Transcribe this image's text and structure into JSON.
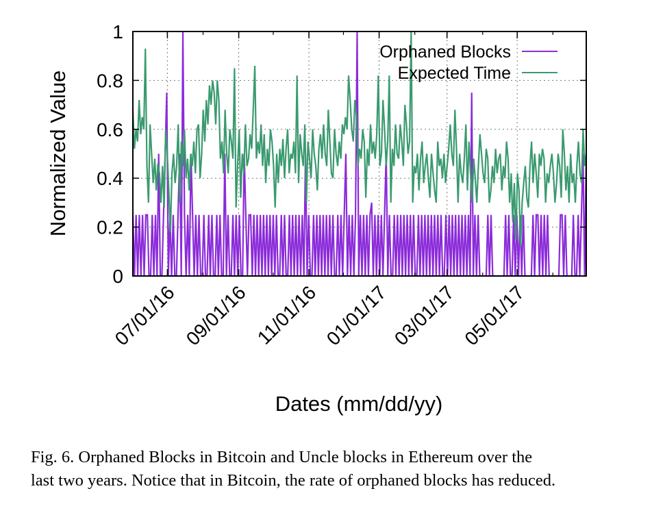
{
  "chart_data": {
    "type": "line",
    "xlabel": "Dates (mm/dd/yy)",
    "ylabel": "Normalized Value",
    "x_range": [
      "06/01/16",
      "06/30/17"
    ],
    "ylim": [
      0,
      1
    ],
    "yticks": [
      0,
      0.2,
      0.4,
      0.6,
      0.8,
      1
    ],
    "ytick_labels": [
      "0",
      "0.2",
      "0.4",
      "0.6",
      "0.8",
      "1"
    ],
    "xticks": [
      "07/01/16",
      "09/01/16",
      "11/01/16",
      "01/01/17",
      "03/01/17",
      "05/01/17"
    ],
    "grid": true,
    "legend_position": "top-right",
    "series": [
      {
        "name": "Orphaned Blocks",
        "color": "#8b2bd9",
        "values": [
          0.25,
          0,
          0.25,
          0,
          0.25,
          0,
          0.25,
          0,
          0.25,
          0.25,
          0,
          0,
          0.25,
          0,
          0.25,
          0,
          0.5,
          0,
          0,
          0.25,
          0.5,
          0.75,
          0,
          0.25,
          0,
          0.25,
          0,
          0,
          0.25,
          0.5,
          0,
          1,
          0.25,
          0,
          0.25,
          0,
          0.5,
          0.25,
          0,
          0.25,
          0,
          0.25,
          0,
          0,
          0.25,
          0,
          0,
          0.25,
          0,
          0.25,
          0,
          0,
          0.25,
          0,
          0.25,
          0,
          0,
          0.5,
          0,
          0.25,
          0,
          0,
          0.25,
          0,
          0.25,
          0,
          0.25,
          0,
          0,
          0.5,
          0.25,
          0,
          0.25,
          0.25,
          0,
          0.25,
          0,
          0.25,
          0,
          0.25,
          0,
          0.25,
          0,
          0.25,
          0,
          0.25,
          0,
          0.25,
          0,
          0.25,
          0,
          0,
          0.25,
          0,
          0.25,
          0,
          0,
          0.25,
          0,
          0.25,
          0,
          0.25,
          0,
          0.25,
          0,
          0.25,
          0,
          0.5,
          0,
          0.25,
          0,
          0,
          0.25,
          0,
          0.25,
          0,
          0.25,
          0,
          0.25,
          0,
          0.25,
          0,
          0.25,
          0,
          0.25,
          0,
          0,
          0.25,
          0,
          0.25,
          0,
          0.25,
          0.5,
          0,
          0.25,
          0,
          0.25,
          0,
          0.25,
          1,
          0,
          0.25,
          0,
          0.25,
          0,
          0.25,
          0,
          0.25,
          0.3,
          0,
          0.25,
          0,
          0.25,
          0,
          0.25,
          0,
          0.25,
          0.5,
          0,
          0.25,
          0,
          0,
          0.25,
          0,
          0.25,
          0,
          0.25,
          0,
          0.25,
          0,
          0.25,
          0,
          0.25,
          0,
          0.25,
          0,
          0,
          0.25,
          0,
          0.25,
          0,
          0.25,
          0,
          0.25,
          0,
          0.25,
          0,
          0.25,
          0,
          0.25,
          0,
          0.25,
          0,
          0,
          0.25,
          0,
          0.25,
          0,
          0.25,
          0,
          0.25,
          0,
          0.25,
          0,
          0.25,
          0,
          0.25,
          0,
          0.25,
          0,
          0.75,
          0,
          0.25,
          0,
          0.25,
          0,
          0,
          0,
          0,
          0,
          0.25,
          0,
          0.25,
          0,
          0,
          0,
          0,
          0,
          0,
          0,
          0,
          0.25,
          0,
          0.25,
          0,
          0,
          0.25,
          0,
          0.25,
          0,
          0.25,
          0,
          0.25,
          0,
          0,
          0,
          0,
          0,
          0.25,
          0,
          0.25,
          0.25,
          0,
          0.25,
          0,
          0.25,
          0,
          0.25,
          0,
          0,
          0,
          0,
          0,
          0,
          0,
          0.25,
          0.25,
          0,
          0.25,
          0,
          0,
          0,
          0,
          0.25,
          0,
          0,
          0.25,
          0,
          0.25,
          0.5,
          0,
          0.5
        ]
      },
      {
        "name": "Expected Time",
        "color": "#3a9a6f",
        "values": [
          0.68,
          0.52,
          0.6,
          0.55,
          0.72,
          0.58,
          0.65,
          0.6,
          0.93,
          0.45,
          0.3,
          0.62,
          0.5,
          0.38,
          0.48,
          0.35,
          0.46,
          0.42,
          0.3,
          0.45,
          0.28,
          0.6,
          0.5,
          0.35,
          0.18,
          0.42,
          0.5,
          0.38,
          0.45,
          0.62,
          0.3,
          0.55,
          0.45,
          0.6,
          0.4,
          0.48,
          0.35,
          0.5,
          0.45,
          0.55,
          0.42,
          0.6,
          0.62,
          0.4,
          0.5,
          0.68,
          0.55,
          0.72,
          0.62,
          0.78,
          0.7,
          0.8,
          0.75,
          0.62,
          0.8,
          0.72,
          0.48,
          0.55,
          0.42,
          0.68,
          0.5,
          0.42,
          0.6,
          0.55,
          0.48,
          0.85,
          0.28,
          0.45,
          0.6,
          0.32,
          0.5,
          0.42,
          0.62,
          0.45,
          0.48,
          0.58,
          0.52,
          0.68,
          0.86,
          0.48,
          0.55,
          0.5,
          0.62,
          0.45,
          0.58,
          0.38,
          0.52,
          0.45,
          0.6,
          0.55,
          0.45,
          0.28,
          0.5,
          0.38,
          0.52,
          0.45,
          0.56,
          0.4,
          0.52,
          0.6,
          0.42,
          0.5,
          0.48,
          0.55,
          0.42,
          0.82,
          0.38,
          0.58,
          0.5,
          0.45,
          0.62,
          0.3,
          0.55,
          0.48,
          0.4,
          0.6,
          0.5,
          0.45,
          0.35,
          0.52,
          0.58,
          0.48,
          0.62,
          0.5,
          0.45,
          0.68,
          0.55,
          0.42,
          0.4,
          0.6,
          0.5,
          0.45,
          0.55,
          0.48,
          0.62,
          0.58,
          0.65,
          0.6,
          0.82,
          0.72,
          0.6,
          0.55,
          0.72,
          0.65,
          0.45,
          0.52,
          0.48,
          0.6,
          0.55,
          0.32,
          0.52,
          0.45,
          0.62,
          0.5,
          0.55,
          0.48,
          0.58,
          0.82,
          0.45,
          0.5,
          0.72,
          0.6,
          0.45,
          0.55,
          0.82,
          0.3,
          0.52,
          0.45,
          0.62,
          0.5,
          0.48,
          0.62,
          0.55,
          0.45,
          0.7,
          0.62,
          0.5,
          0.55,
          1,
          0.3,
          0.45,
          0.42,
          0.5,
          0.35,
          0.48,
          0.55,
          0.38,
          0.45,
          0.5,
          0.4,
          0.32,
          0.5,
          0.42,
          0.35,
          0.3,
          0.55,
          0.45,
          0.48,
          0.4,
          0.5,
          0.38,
          0.45,
          0.52,
          0.62,
          0.5,
          0.45,
          0.68,
          0.52,
          0.3,
          0.5,
          0.42,
          0.38,
          0.48,
          0.62,
          0.35,
          0.55,
          0.42,
          0.3,
          0.48,
          0.4,
          0.3,
          0.45,
          0.58,
          0.5,
          0.42,
          0.38,
          0.52,
          0.48,
          0.3,
          0.35,
          0.45,
          0.38,
          0.52,
          0.42,
          0.48,
          0.5,
          0.35,
          0.45,
          0.4,
          0.55,
          0.48,
          0.3,
          0.42,
          0.22,
          0.38,
          0.15,
          0.42,
          0.35,
          0.12,
          0.3,
          0.38,
          0.45,
          0.32,
          0.28,
          0.45,
          0.55,
          0.38,
          0.5,
          0.42,
          0.32,
          0.5,
          0.45,
          0.52,
          0.48,
          0.3,
          0.42,
          0.38,
          0.45,
          0.5,
          0.42,
          0.3,
          0.38,
          0.5,
          0.45,
          0.32,
          0.6,
          0.5,
          0.35,
          0.45,
          0.3,
          0.5,
          0.38,
          0.42,
          0.3,
          0.45,
          0.55,
          0.42,
          0.38,
          0.6,
          0.45,
          0.5
        ]
      }
    ]
  },
  "caption": {
    "line1": "Fig. 6.  Orphaned Blocks in Bitcoin and Uncle blocks in Ethereum over the",
    "line2": "last two years. Notice that in Bitcoin, the rate of orphaned blocks has reduced."
  }
}
